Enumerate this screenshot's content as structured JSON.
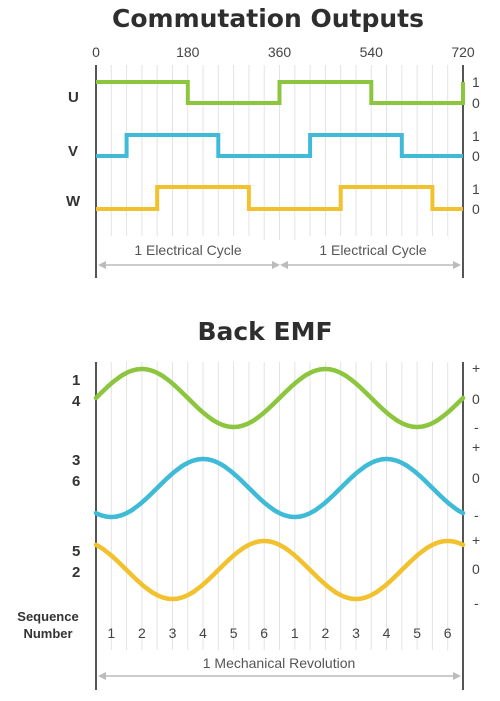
{
  "commutation": {
    "title": "Commutation Outputs",
    "degree_ticks": [
      "0",
      "180",
      "360",
      "540",
      "720"
    ],
    "phases": [
      {
        "label": "U",
        "high": "1",
        "low": "0",
        "color": "#8cc63f",
        "transitions_deg": [
          0,
          180,
          360,
          540,
          720
        ],
        "start_high": true
      },
      {
        "label": "V",
        "high": "1",
        "low": "0",
        "color": "#3fbbd8",
        "transitions_deg": [
          60,
          240,
          420,
          600
        ],
        "start_high": false
      },
      {
        "label": "W",
        "high": "1",
        "low": "0",
        "color": "#f2c12e",
        "transitions_deg": [
          120,
          300,
          480,
          660
        ],
        "start_high": false
      }
    ],
    "cycle_labels": [
      "1 Electrical Cycle",
      "1 Electrical Cycle"
    ]
  },
  "back_emf": {
    "title": "Back EMF",
    "traces": [
      {
        "labels": [
          "1",
          "4"
        ],
        "levels": [
          "+",
          "0",
          "-"
        ],
        "color": "#8cc63f",
        "phase_deg": 0
      },
      {
        "labels": [
          "3",
          "6"
        ],
        "levels": [
          "+",
          "0",
          "-"
        ],
        "color": "#3fbbd8",
        "phase_deg": -120
      },
      {
        "labels": [
          "5",
          "2"
        ],
        "levels": [
          "+",
          "0",
          "-"
        ],
        "color": "#f2c12e",
        "phase_deg": 120
      }
    ],
    "sequence_label_1": "Sequence",
    "sequence_label_2": "Number",
    "sequence_numbers": [
      "1",
      "2",
      "3",
      "4",
      "5",
      "6",
      "1",
      "2",
      "3",
      "4",
      "5",
      "6"
    ],
    "revolution_label": "1 Mechanical Revolution"
  }
}
